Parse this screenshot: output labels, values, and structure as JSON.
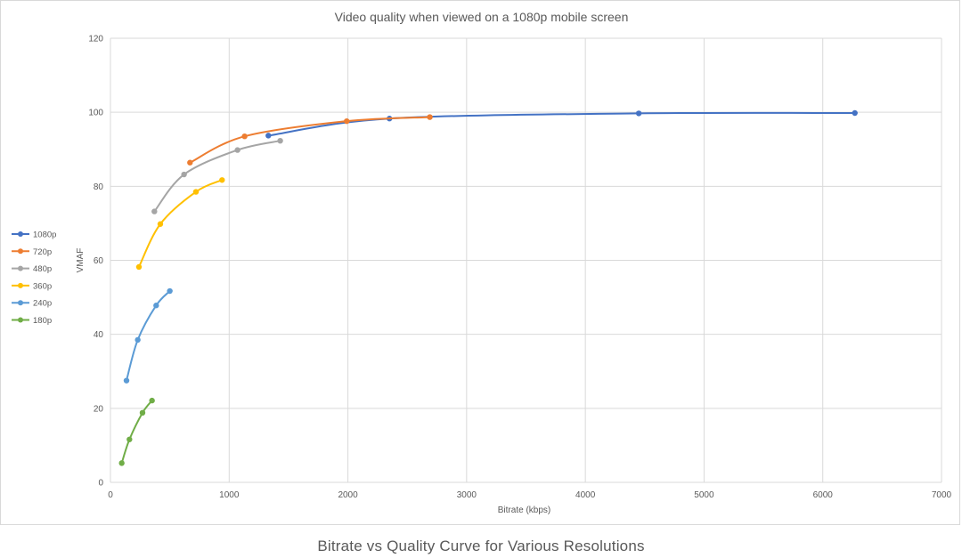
{
  "caption": "Bitrate vs Quality Curve for Various Resolutions",
  "chart_data": {
    "type": "scatter",
    "title": "Video quality when viewed on a 1080p mobile screen",
    "xlabel": "Bitrate (kbps)",
    "ylabel": "VMAF",
    "xlim": [
      0,
      7000
    ],
    "ylim": [
      0,
      120
    ],
    "x_ticks": [
      0,
      1000,
      2000,
      3000,
      4000,
      5000,
      6000,
      7000
    ],
    "y_ticks": [
      0,
      20,
      40,
      60,
      80,
      100,
      120
    ],
    "grid": true,
    "smooth_lines": true,
    "legend_position": "left",
    "series": [
      {
        "name": "1080p",
        "color": "#4472C4",
        "points": [
          [
            1330,
            93.7
          ],
          [
            2350,
            98.3
          ],
          [
            4450,
            99.7
          ],
          [
            6270,
            99.8
          ]
        ]
      },
      {
        "name": "720p",
        "color": "#ED7D31",
        "points": [
          [
            670,
            86.4
          ],
          [
            1130,
            93.5
          ],
          [
            1990,
            97.6
          ],
          [
            2690,
            98.7
          ]
        ]
      },
      {
        "name": "480p",
        "color": "#A5A5A5",
        "points": [
          [
            370,
            73.2
          ],
          [
            620,
            83.2
          ],
          [
            1070,
            89.8
          ],
          [
            1430,
            92.3
          ]
        ]
      },
      {
        "name": "360p",
        "color": "#FFC000",
        "points": [
          [
            240,
            58.2
          ],
          [
            420,
            69.8
          ],
          [
            720,
            78.5
          ],
          [
            940,
            81.7
          ]
        ]
      },
      {
        "name": "240p",
        "color": "#5B9BD5",
        "points": [
          [
            135,
            27.5
          ],
          [
            230,
            38.5
          ],
          [
            385,
            47.8
          ],
          [
            500,
            51.7
          ]
        ]
      },
      {
        "name": "180p",
        "color": "#70AD47",
        "points": [
          [
            95,
            5.2
          ],
          [
            160,
            11.6
          ],
          [
            270,
            18.8
          ],
          [
            350,
            22.1
          ]
        ]
      }
    ]
  }
}
